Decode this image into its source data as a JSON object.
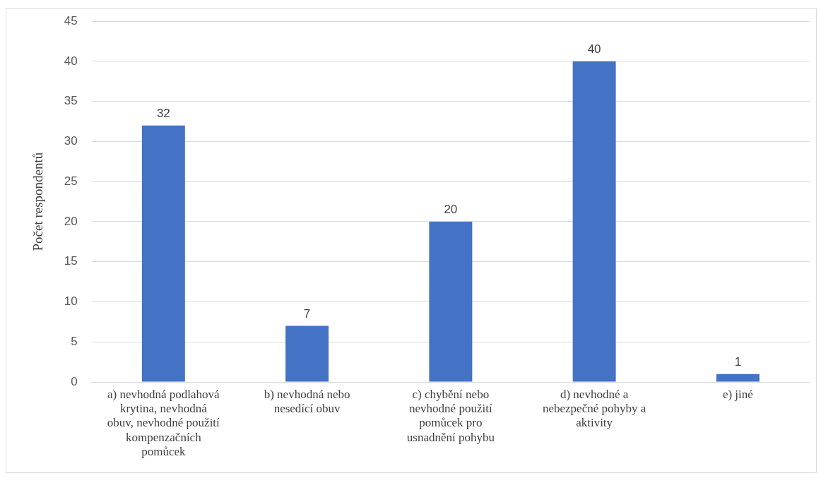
{
  "chart_data": {
    "type": "bar",
    "ylabel": "Počet respondentů",
    "categories": [
      "a) nevhodná podlahová krytina, nevhodná obuv, nevhodné použití kompenzačních pomůcek",
      "b) nevhodná nebo nesedící obuv",
      "c) chybění nebo nevhodné použití pomůcek pro usnadnění pohybu",
      "d) nevhodné a nebezpečné pohyby a aktivity",
      "e) jiné"
    ],
    "values": [
      32,
      7,
      20,
      40,
      1
    ],
    "color": "#4472c4",
    "ylim": [
      0,
      45
    ],
    "yticks": [
      0,
      5,
      10,
      15,
      20,
      25,
      30,
      35,
      40,
      45
    ],
    "grid": "y",
    "data_labels": true,
    "legend": false
  }
}
